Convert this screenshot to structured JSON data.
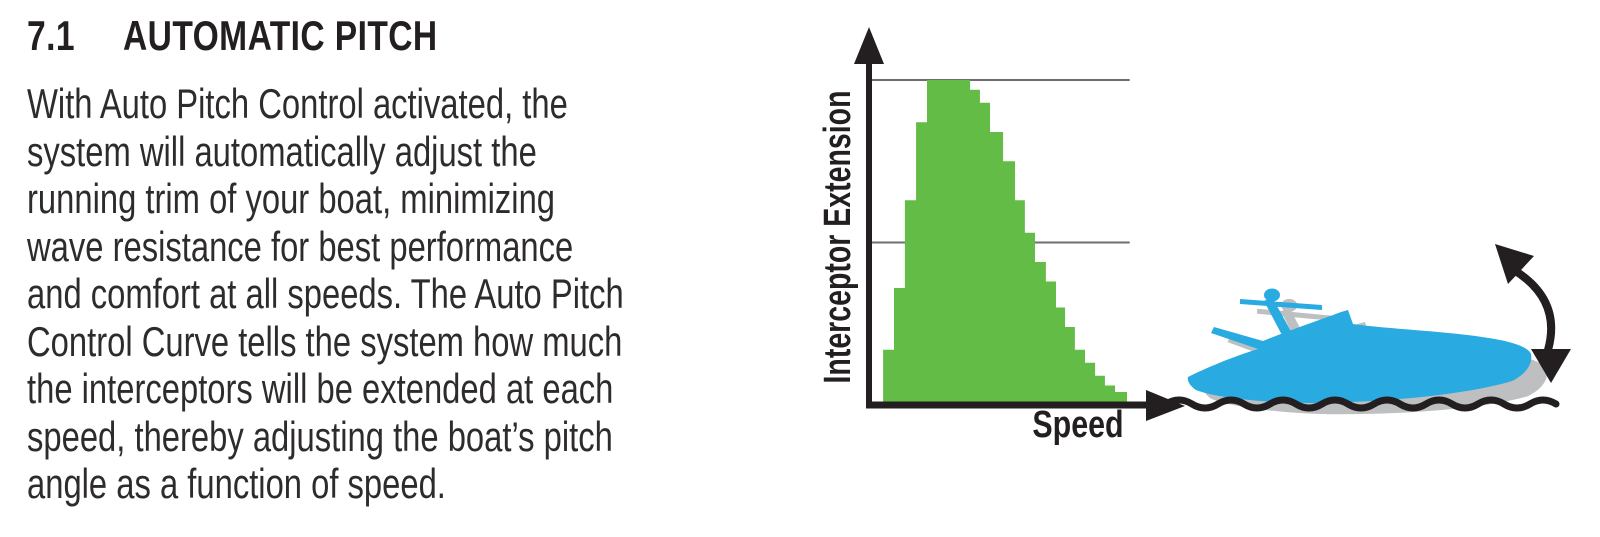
{
  "colors": {
    "background": "#ffffff",
    "ink": "#231f20",
    "curve_green": "#62bc46",
    "boat_blue": "#29abe2",
    "shadow_gray": "#bdbfc1",
    "grid_gray": "#6d6e71"
  },
  "section": {
    "number": "7.1",
    "title": "AUTOMATIC PITCH",
    "body": "With Auto Pitch Control activated, the\nsystem will automatically adjust the\nrunning trim of your boat, minimizing\nwave resistance for best performance\nand comfort at all speeds. The Auto Pitch\nControl Curve tells the system how much\nthe interceptors will be extended at each\nspeed, thereby adjusting the boat’s pitch\nangle as a function of speed."
  },
  "chart_data": {
    "type": "area",
    "subtype": "step-curve",
    "xlabel": "Speed",
    "ylabel": "Interceptor Extension",
    "xlim": [
      0,
      100
    ],
    "ylim": [
      0,
      100
    ],
    "grid": true,
    "gridlines_y": [
      50,
      100
    ],
    "grid_x_extent": 98,
    "axis_arrows": true,
    "legend": "none",
    "series": [
      {
        "name": "interceptor_extension_vs_speed",
        "steps": [
          [
            5.3,
            17
          ],
          [
            9.4,
            36
          ],
          [
            13.5,
            63
          ],
          [
            17.7,
            87
          ],
          [
            21.8,
            100
          ],
          [
            38.0,
            97
          ],
          [
            41.7,
            93
          ],
          [
            45.5,
            84
          ],
          [
            50.4,
            75
          ],
          [
            54.9,
            63
          ],
          [
            58.6,
            53
          ],
          [
            62.4,
            44
          ],
          [
            66.5,
            38
          ],
          [
            70.3,
            30
          ],
          [
            73.7,
            24
          ],
          [
            77.4,
            17
          ],
          [
            81.2,
            13
          ],
          [
            85.0,
            9
          ],
          [
            88.7,
            6
          ],
          [
            92.5,
            4
          ]
        ],
        "end_x": 97.0
      }
    ]
  },
  "illustration": {
    "subject": "boat-pitch-silhouette",
    "elements": [
      "boat-shadow",
      "boat-silhouette",
      "waterline-wave",
      "pitch-double-arrow"
    ]
  }
}
